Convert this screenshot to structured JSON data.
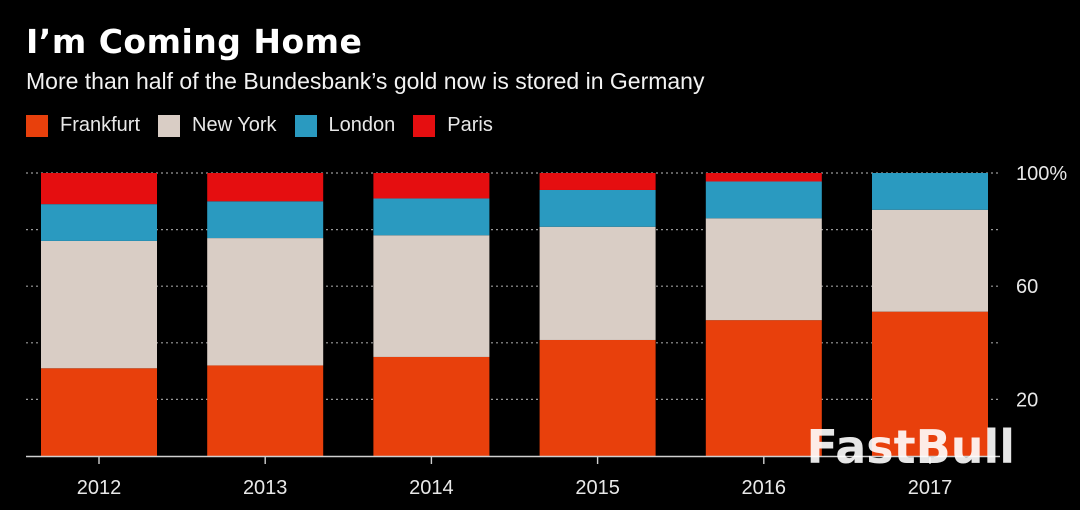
{
  "title": "I’m Coming Home",
  "subtitle": "More than half of the Bundesbank’s gold now is stored in Germany",
  "watermark": "FastBull",
  "chart_data": {
    "type": "bar",
    "stacked": true,
    "title": "I’m Coming Home",
    "subtitle": "More than half of the Bundesbank’s gold now is stored in Germany",
    "categories": [
      "2012",
      "2013",
      "2014",
      "2015",
      "2016",
      "2017"
    ],
    "ylim": [
      0,
      100
    ],
    "yticks": [
      20,
      60,
      100
    ],
    "ytick_labels": [
      "20",
      "60",
      "100%"
    ],
    "series": [
      {
        "name": "Frankfurt",
        "color": "#e8400c",
        "values": [
          31,
          32,
          35,
          41,
          48,
          51
        ]
      },
      {
        "name": "New York",
        "color": "#d9cdc5",
        "values": [
          45,
          45,
          43,
          40,
          36,
          36
        ]
      },
      {
        "name": "London",
        "color": "#2a9ac0",
        "values": [
          13,
          13,
          13,
          13,
          13,
          13
        ]
      },
      {
        "name": "Paris",
        "color": "#e50e10",
        "values": [
          11,
          10,
          9,
          6,
          3,
          0
        ]
      }
    ]
  }
}
